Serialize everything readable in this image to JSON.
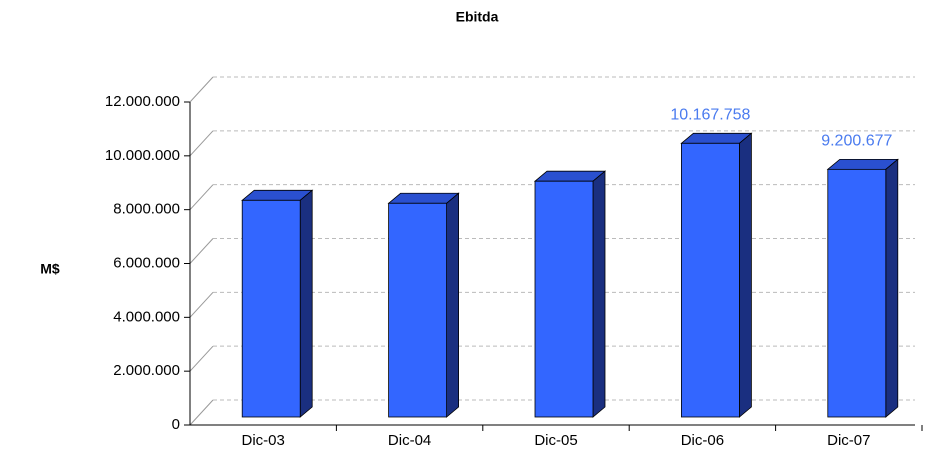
{
  "chart_data": {
    "type": "bar",
    "title": "Ebitda",
    "y_label": "M$",
    "categories": [
      "Dic-03",
      "Dic-04",
      "Dic-05",
      "Dic-06",
      "Dic-07"
    ],
    "values": [
      8050000,
      7940000,
      8760000,
      10167758,
      9200677
    ],
    "value_labels": [
      null,
      null,
      null,
      "10.167.758",
      "9.200.677"
    ],
    "color": "#3366ff",
    "ylim": [
      0,
      12000000
    ],
    "yticks": [
      0,
      {
        "value": 2000000,
        "label": "2.000.000"
      },
      {
        "value": 4000000,
        "label": "4.000.000"
      },
      {
        "value": 6000000,
        "label": "6.000.000"
      },
      {
        "value": 8000000,
        "label": "8.000.000"
      },
      {
        "value": 10000000,
        "label": "10.000.000"
      },
      {
        "value": 12000000,
        "label": "12.000.000"
      }
    ],
    "grid": true
  }
}
